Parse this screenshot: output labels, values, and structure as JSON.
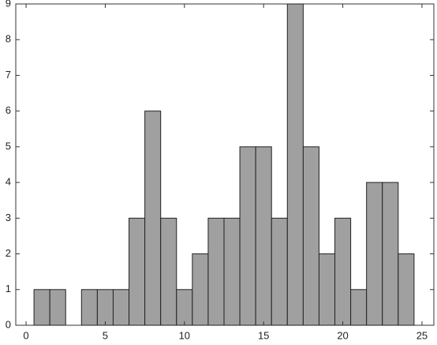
{
  "chart_data": {
    "type": "histogram",
    "bins": [
      0.5,
      1.5,
      2.5,
      3.5,
      4.5,
      5.5,
      6.5,
      7.5,
      8.5,
      9.5,
      10.5,
      11.5,
      12.5,
      13.5,
      14.5,
      15.5,
      16.5,
      17.5,
      18.5,
      19.5,
      20.5,
      21.5,
      22.5,
      23.5,
      24.5
    ],
    "values": [
      1,
      1,
      0,
      1,
      1,
      1,
      3,
      6,
      3,
      1,
      2,
      3,
      3,
      5,
      5,
      3,
      9,
      5,
      2,
      3,
      1,
      4,
      4,
      2
    ],
    "color": "#a0a0a0",
    "xlim": [
      -0.65,
      25.75
    ],
    "xticks": [
      0,
      5,
      10,
      15,
      20,
      25
    ],
    "ylim": [
      0,
      9
    ],
    "yticks": [
      0,
      1,
      2,
      3,
      4,
      5,
      6,
      7,
      8,
      9
    ],
    "grid": false
  }
}
